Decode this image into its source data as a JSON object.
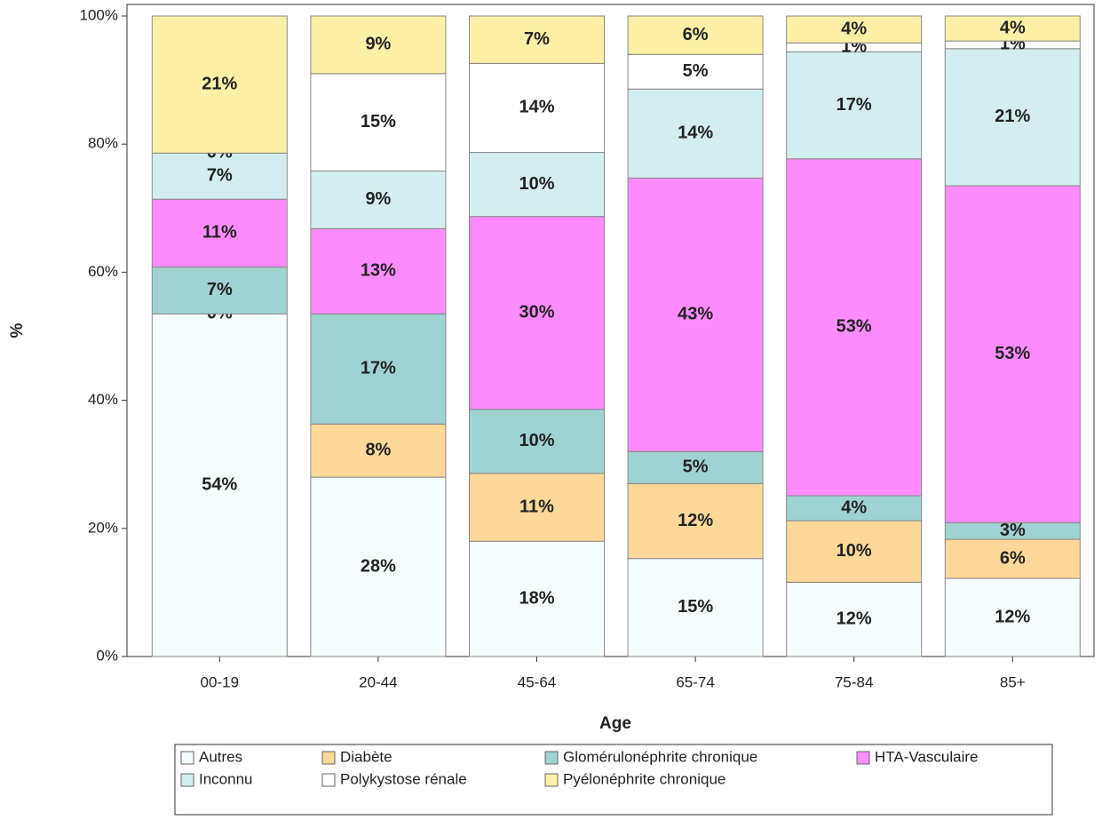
{
  "chart_data": {
    "type": "stacked_bar",
    "x_label": "Age",
    "y_label": "%",
    "categories": [
      "00-19",
      "20-44",
      "45-64",
      "65-74",
      "75-84",
      "85+"
    ],
    "ylim": [
      0,
      100
    ],
    "yticks": [
      {
        "value": 0,
        "label": "0%"
      },
      {
        "value": 20,
        "label": "20%"
      },
      {
        "value": 40,
        "label": "40%"
      },
      {
        "value": 60,
        "label": "60%"
      },
      {
        "value": 80,
        "label": "80%"
      },
      {
        "value": 100,
        "label": "100%"
      }
    ],
    "legend": "bottom",
    "series": [
      {
        "name": "Autres",
        "color": "#f5fdfd",
        "values": [
          53.5,
          28.0,
          18.0,
          15.3,
          11.6,
          12.2
        ],
        "value_labels": [
          "54%",
          "28%",
          "18%",
          "15%",
          "12%",
          "12%"
        ]
      },
      {
        "name": "Diabète",
        "color": "#fdd898",
        "values": [
          0,
          8.3,
          10.6,
          11.7,
          9.6,
          6.1
        ],
        "value_labels": [
          "0%",
          "8%",
          "11%",
          "12%",
          "10%",
          "6%"
        ]
      },
      {
        "name": "Glomérulonéphrite chronique",
        "color": "#9fd3d1",
        "values": [
          7.3,
          17.2,
          10.0,
          5.0,
          3.9,
          2.6
        ],
        "value_labels": [
          "7%",
          "17%",
          "10%",
          "5%",
          "4%",
          "3%"
        ]
      },
      {
        "name": "HTA-Vasculaire",
        "color": "#ff8cff",
        "values": [
          10.6,
          13.3,
          30.1,
          42.7,
          52.6,
          52.6
        ],
        "value_labels": [
          "11%",
          "13%",
          "30%",
          "43%",
          "53%",
          "53%"
        ]
      },
      {
        "name": "Inconnu",
        "color": "#d3eeee",
        "values": [
          7.2,
          9.0,
          10.0,
          13.9,
          16.7,
          21.4
        ],
        "value_labels": [
          "7%",
          "9%",
          "10%",
          "14%",
          "17%",
          "21%"
        ]
      },
      {
        "name": "Polykystose rénale",
        "color": "#ffffff",
        "values": [
          0,
          15.2,
          13.9,
          5.4,
          1.4,
          1.2
        ],
        "value_labels": [
          "0%",
          "15%",
          "14%",
          "5%",
          "1%",
          "1%"
        ]
      },
      {
        "name": "Pyélonéphrite chronique",
        "color": "#fdf0a6",
        "values": [
          21.4,
          9.0,
          7.4,
          6.0,
          4.2,
          3.9
        ],
        "value_labels": [
          "21%",
          "9%",
          "7%",
          "6%",
          "4%",
          "4%"
        ]
      }
    ]
  }
}
